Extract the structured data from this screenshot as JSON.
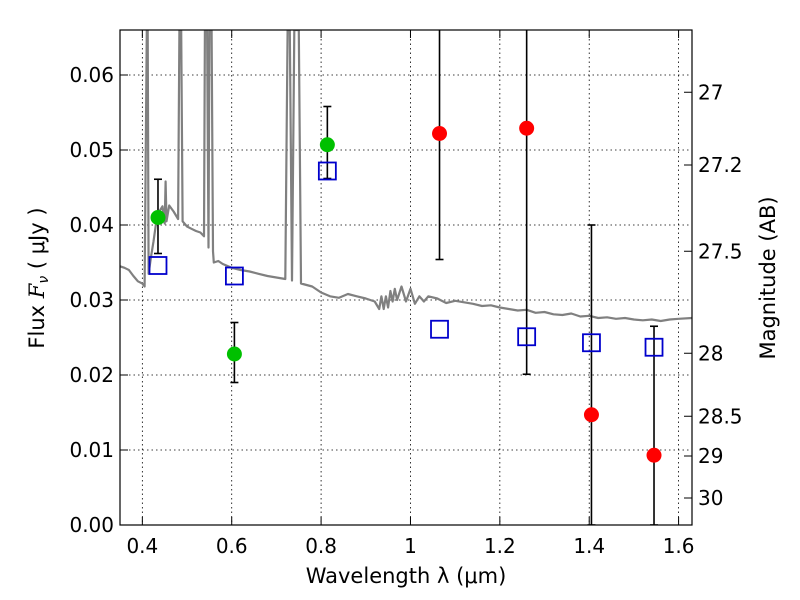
{
  "chart_data": {
    "type": "scatter",
    "xlabel": "Wavelength  λ (μm)",
    "ylabel": "Flux  F_ν  ( μJy )",
    "ylabel_parts": [
      "Flux  ",
      "F",
      "ν",
      "  ( μJy )"
    ],
    "y2label": "Magnitude (AB)",
    "xlim": [
      0.35,
      1.63
    ],
    "ylim": [
      0.0,
      0.066
    ],
    "grid": true,
    "x_ticks": [
      0.4,
      0.6,
      0.8,
      1.0,
      1.2,
      1.4,
      1.6
    ],
    "x_tick_labels": [
      "0.4",
      "0.6",
      "0.8",
      "1",
      "1.2",
      "1.4",
      "1.6"
    ],
    "y_ticks": [
      0.0,
      0.01,
      0.02,
      0.03,
      0.04,
      0.05,
      0.06
    ],
    "y_tick_labels": [
      "0.00",
      "0.01",
      "0.02",
      "0.03",
      "0.04",
      "0.05",
      "0.06"
    ],
    "y2_ticks": [
      {
        "label": "27",
        "flux": 0.0577
      },
      {
        "label": "27.2",
        "flux": 0.048
      },
      {
        "label": "27.5",
        "flux": 0.0365
      },
      {
        "label": "28",
        "flux": 0.0229
      },
      {
        "label": "28.5",
        "flux": 0.0145
      },
      {
        "label": "29",
        "flux": 0.0092
      },
      {
        "label": "30",
        "flux": 0.0036
      }
    ],
    "series": [
      {
        "marker": "circle",
        "color": "#00c000",
        "points": [
          {
            "x": 0.435,
            "y": 0.041,
            "err_low": 0.0048,
            "err_high": 0.0051
          },
          {
            "x": 0.606,
            "y": 0.0228,
            "err_low": 0.0038,
            "err_high": 0.0042
          },
          {
            "x": 0.814,
            "y": 0.0507,
            "err_low": 0.0045,
            "err_high": 0.0051
          }
        ]
      },
      {
        "marker": "circle",
        "color": "#ff0000",
        "points": [
          {
            "x": 1.065,
            "y": 0.0522,
            "err_low": 0.0168,
            "err_high": 0.0145
          },
          {
            "x": 1.26,
            "y": 0.0529,
            "err_low": 0.0328,
            "err_high": 0.0135
          },
          {
            "x": 1.405,
            "y": 0.0147,
            "err_low": 0.0147,
            "err_high": 0.0253
          },
          {
            "x": 1.545,
            "y": 0.0093,
            "err_low": 0.0093,
            "err_high": 0.0172
          }
        ]
      },
      {
        "marker": "square",
        "color": "#0000cc",
        "points": [
          {
            "x": 0.435,
            "y": 0.0346
          },
          {
            "x": 0.606,
            "y": 0.0332
          },
          {
            "x": 0.814,
            "y": 0.0472
          },
          {
            "x": 1.065,
            "y": 0.0261
          },
          {
            "x": 1.26,
            "y": 0.0251
          },
          {
            "x": 1.405,
            "y": 0.0243
          },
          {
            "x": 1.545,
            "y": 0.0237
          }
        ]
      },
      {
        "marker": "line",
        "color": "#808080",
        "points": [
          [
            0.35,
            0.0345
          ],
          [
            0.36,
            0.0343
          ],
          [
            0.37,
            0.034
          ],
          [
            0.38,
            0.0332
          ],
          [
            0.39,
            0.0325
          ],
          [
            0.4,
            0.0322
          ],
          [
            0.405,
            0.0318
          ],
          [
            0.41,
            0.066
          ],
          [
            0.412,
            0.066
          ],
          [
            0.414,
            0.0335
          ],
          [
            0.42,
            0.036
          ],
          [
            0.425,
            0.0378
          ],
          [
            0.43,
            0.04
          ],
          [
            0.435,
            0.0415
          ],
          [
            0.44,
            0.042
          ],
          [
            0.445,
            0.0425
          ],
          [
            0.45,
            0.0402
          ],
          [
            0.452,
            0.0458
          ],
          [
            0.454,
            0.0405
          ],
          [
            0.46,
            0.0426
          ],
          [
            0.47,
            0.0418
          ],
          [
            0.48,
            0.0408
          ],
          [
            0.483,
            0.066
          ],
          [
            0.487,
            0.066
          ],
          [
            0.49,
            0.0405
          ],
          [
            0.5,
            0.0398
          ],
          [
            0.51,
            0.0395
          ],
          [
            0.52,
            0.0392
          ],
          [
            0.53,
            0.039
          ],
          [
            0.538,
            0.0385
          ],
          [
            0.54,
            0.066
          ],
          [
            0.545,
            0.066
          ],
          [
            0.548,
            0.037
          ],
          [
            0.55,
            0.066
          ],
          [
            0.555,
            0.066
          ],
          [
            0.558,
            0.0365
          ],
          [
            0.56,
            0.035
          ],
          [
            0.57,
            0.0352
          ],
          [
            0.58,
            0.0348
          ],
          [
            0.6,
            0.0343
          ],
          [
            0.62,
            0.034
          ],
          [
            0.64,
            0.0338
          ],
          [
            0.66,
            0.0335
          ],
          [
            0.68,
            0.0332
          ],
          [
            0.7,
            0.033
          ],
          [
            0.72,
            0.0328
          ],
          [
            0.725,
            0.066
          ],
          [
            0.73,
            0.066
          ],
          [
            0.735,
            0.0326
          ],
          [
            0.74,
            0.066
          ],
          [
            0.75,
            0.066
          ],
          [
            0.755,
            0.0322
          ],
          [
            0.78,
            0.0318
          ],
          [
            0.8,
            0.031
          ],
          [
            0.82,
            0.0305
          ],
          [
            0.84,
            0.0303
          ],
          [
            0.86,
            0.0308
          ],
          [
            0.88,
            0.0305
          ],
          [
            0.9,
            0.0302
          ],
          [
            0.92,
            0.0298
          ],
          [
            0.93,
            0.0288
          ],
          [
            0.935,
            0.0305
          ],
          [
            0.94,
            0.0288
          ],
          [
            0.945,
            0.0305
          ],
          [
            0.95,
            0.029
          ],
          [
            0.955,
            0.0312
          ],
          [
            0.96,
            0.0298
          ],
          [
            0.965,
            0.0315
          ],
          [
            0.97,
            0.03
          ],
          [
            0.98,
            0.0318
          ],
          [
            0.99,
            0.0298
          ],
          [
            1.0,
            0.0315
          ],
          [
            1.01,
            0.0295
          ],
          [
            1.02,
            0.0305
          ],
          [
            1.03,
            0.0298
          ],
          [
            1.04,
            0.0305
          ],
          [
            1.06,
            0.0302
          ],
          [
            1.08,
            0.0296
          ],
          [
            1.1,
            0.0299
          ],
          [
            1.12,
            0.0297
          ],
          [
            1.14,
            0.0295
          ],
          [
            1.16,
            0.0292
          ],
          [
            1.18,
            0.0293
          ],
          [
            1.2,
            0.029
          ],
          [
            1.22,
            0.0288
          ],
          [
            1.24,
            0.0286
          ],
          [
            1.26,
            0.0287
          ],
          [
            1.28,
            0.0283
          ],
          [
            1.3,
            0.0284
          ],
          [
            1.32,
            0.0281
          ],
          [
            1.34,
            0.028
          ],
          [
            1.36,
            0.0282
          ],
          [
            1.38,
            0.0278
          ],
          [
            1.4,
            0.0279
          ],
          [
            1.42,
            0.0276
          ],
          [
            1.44,
            0.0277
          ],
          [
            1.46,
            0.0275
          ],
          [
            1.48,
            0.0276
          ],
          [
            1.5,
            0.0274
          ],
          [
            1.52,
            0.0273
          ],
          [
            1.54,
            0.0274
          ],
          [
            1.56,
            0.0272
          ],
          [
            1.58,
            0.0274
          ],
          [
            1.6,
            0.0275
          ],
          [
            1.63,
            0.0276
          ]
        ]
      }
    ]
  }
}
